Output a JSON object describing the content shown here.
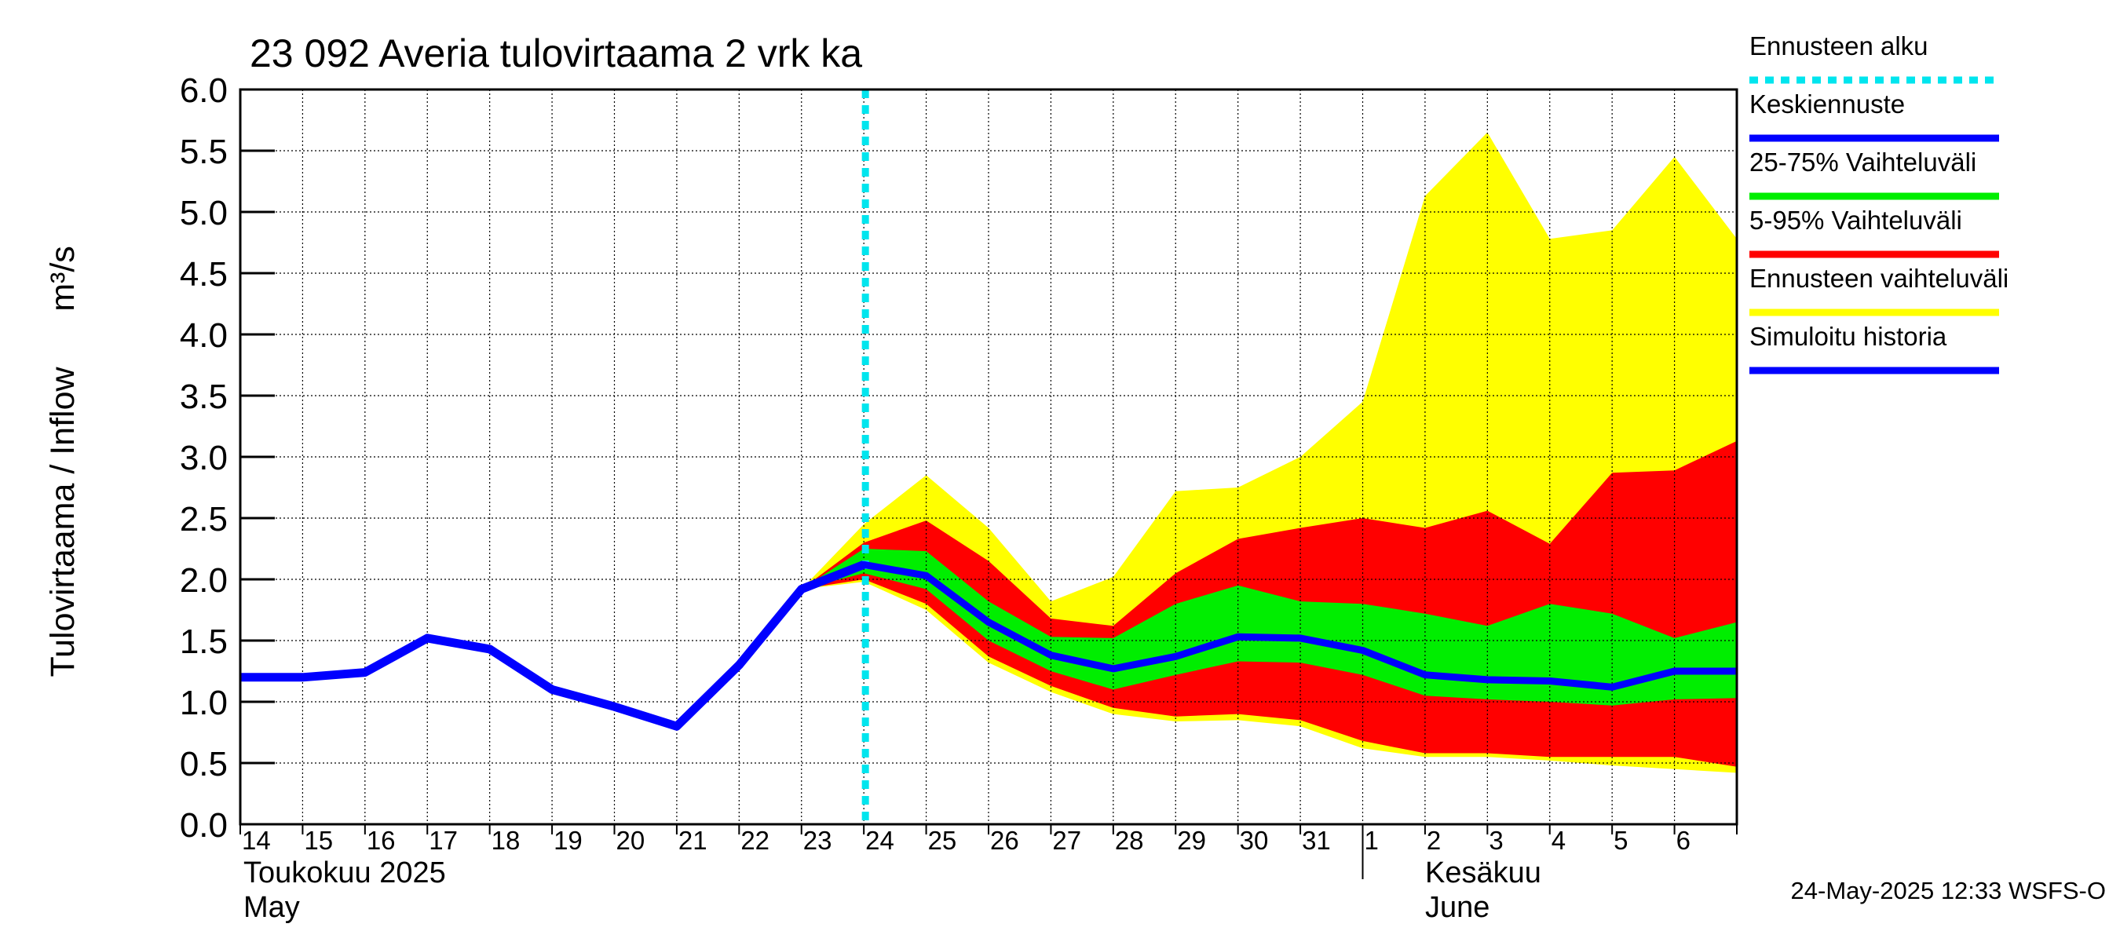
{
  "colors": {
    "forecast_start": "#00e5ee",
    "mean_forecast": "#0000ff",
    "band_25_75": "#00ee00",
    "band_5_95": "#ff0000",
    "band_full": "#ffff00",
    "simulated_history": "#0000ff",
    "grid": "#000000"
  },
  "chart_data": {
    "type": "area",
    "title": "23 092 Averia tulovirtaama 2 vrk ka",
    "ylabel": "Tulovirtaama / Inflow",
    "yunit": "m³/s",
    "ylim": [
      0,
      6.0
    ],
    "yticks": [
      "0.0",
      "0.5",
      "1.0",
      "1.5",
      "2.0",
      "2.5",
      "3.0",
      "3.5",
      "4.0",
      "4.5",
      "5.0",
      "5.5",
      "6.0"
    ],
    "xlim": [
      "2025-05-14",
      "2025-06-07"
    ],
    "x_tick_labels": [
      "14",
      "15",
      "16",
      "17",
      "18",
      "19",
      "20",
      "21",
      "22",
      "23",
      "24",
      "25",
      "26",
      "27",
      "28",
      "29",
      "30",
      "31",
      "1",
      "2",
      "3",
      "4",
      "5",
      "6"
    ],
    "month_labels": [
      {
        "line1": "Toukokuu  2025",
        "line2": "May"
      },
      {
        "line1": "Kesäkuu",
        "line2": "June"
      }
    ],
    "grid": true,
    "legend_position": "right",
    "forecast_start": "2025-05-24",
    "simulated_history": {
      "name": "Simuloitu historia",
      "x": [
        "2025-05-14",
        "2025-05-15",
        "2025-05-16",
        "2025-05-17",
        "2025-05-18",
        "2025-05-19",
        "2025-05-20",
        "2025-05-21",
        "2025-05-22",
        "2025-05-23",
        "2025-05-24"
      ],
      "y": [
        1.2,
        1.2,
        1.24,
        1.52,
        1.43,
        1.1,
        0.96,
        0.8,
        1.3,
        1.92,
        2.12
      ]
    },
    "forecast_dates": [
      "2025-05-23",
      "2025-05-24",
      "2025-05-25",
      "2025-05-26",
      "2025-05-27",
      "2025-05-28",
      "2025-05-29",
      "2025-05-30",
      "2025-05-31",
      "2025-06-01",
      "2025-06-02",
      "2025-06-03",
      "2025-06-04",
      "2025-06-05",
      "2025-06-06",
      "2025-06-07"
    ],
    "mean_forecast": {
      "name": "Keskiennuste",
      "y": [
        1.92,
        2.12,
        2.03,
        1.65,
        1.38,
        1.27,
        1.37,
        1.53,
        1.52,
        1.42,
        1.22,
        1.18,
        1.17,
        1.12,
        1.25,
        1.25
      ]
    },
    "band_25_75": {
      "name": "25-75% Vaihteluväli",
      "low": [
        1.92,
        2.05,
        1.92,
        1.5,
        1.25,
        1.1,
        1.22,
        1.33,
        1.32,
        1.22,
        1.05,
        1.02,
        1.0,
        0.97,
        1.02,
        1.03
      ],
      "high": [
        1.92,
        2.25,
        2.23,
        1.82,
        1.53,
        1.52,
        1.8,
        1.95,
        1.82,
        1.8,
        1.72,
        1.62,
        1.8,
        1.72,
        1.52,
        1.65
      ]
    },
    "band_5_95": {
      "name": "5-95% Vaihteluväli",
      "low": [
        1.92,
        2.0,
        1.8,
        1.37,
        1.13,
        0.95,
        0.88,
        0.9,
        0.85,
        0.68,
        0.58,
        0.58,
        0.55,
        0.55,
        0.55,
        0.47
      ],
      "high": [
        1.92,
        2.3,
        2.48,
        2.15,
        1.68,
        1.62,
        2.05,
        2.33,
        2.42,
        2.5,
        2.42,
        2.56,
        2.29,
        2.87,
        2.89,
        3.13
      ]
    },
    "band_full": {
      "name": "Ennusteen vaihteluväli",
      "low": [
        1.92,
        1.98,
        1.75,
        1.32,
        1.08,
        0.9,
        0.84,
        0.85,
        0.8,
        0.62,
        0.55,
        0.55,
        0.52,
        0.48,
        0.45,
        0.42
      ],
      "high": [
        1.92,
        2.45,
        2.85,
        2.42,
        1.82,
        2.02,
        2.72,
        2.75,
        3.0,
        3.45,
        5.13,
        5.65,
        4.78,
        4.85,
        5.45,
        4.78
      ]
    },
    "legend": [
      {
        "label": "Ennusteen alku",
        "key": "forecast_start",
        "style": "dashed"
      },
      {
        "label": "Keskiennuste",
        "key": "mean_forecast",
        "style": "solid"
      },
      {
        "label": "25-75% Vaihteluväli",
        "key": "band_25_75",
        "style": "solid"
      },
      {
        "label": "5-95% Vaihteluväli",
        "key": "band_5_95",
        "style": "solid"
      },
      {
        "label": "Ennusteen vaihteluväli",
        "key": "band_full",
        "style": "solid"
      },
      {
        "label": "Simuloitu historia",
        "key": "simulated_history",
        "style": "solid"
      }
    ],
    "footer_timestamp": "24-May-2025 12:33 WSFS-O"
  }
}
